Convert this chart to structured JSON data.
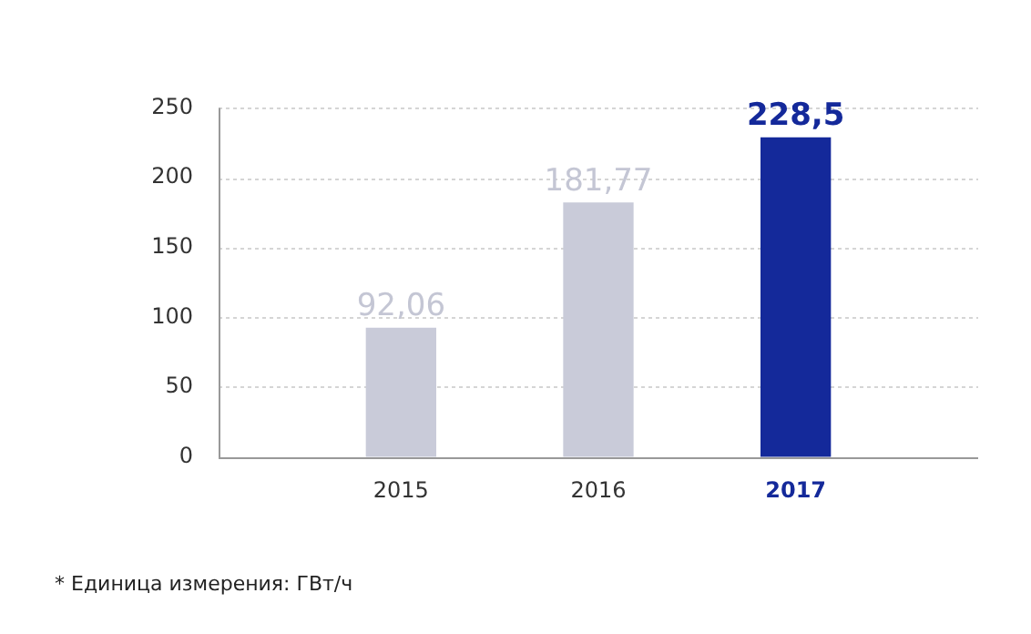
{
  "chart_data": {
    "type": "bar",
    "categories": [
      "2015",
      "2016",
      "2017"
    ],
    "values": [
      92.06,
      181.77,
      228.5
    ],
    "colors": [
      "#c9cbd9",
      "#c9cbd9",
      "#14299a"
    ],
    "value_labels": [
      "92,06",
      "181,77",
      "228,5"
    ],
    "ylim": [
      0,
      250
    ],
    "yticks": [
      0,
      50,
      100,
      150,
      200,
      250
    ],
    "grid": "y",
    "legend": false,
    "annotations": [
      "* Единица измерения: ГВт/ч"
    ]
  }
}
